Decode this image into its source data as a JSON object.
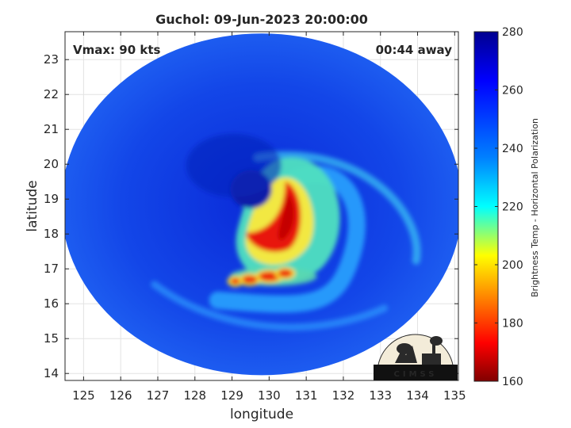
{
  "chart_data": {
    "type": "heatmap",
    "title": "Guchol: 09-Jun-2023 20:00:00",
    "annotations": {
      "vmax": "Vmax: 90 kts",
      "time_offset": "00:44 away"
    },
    "xlabel": "longitude",
    "ylabel": "latitude",
    "xlim": [
      124.5,
      135.1
    ],
    "ylim": [
      13.8,
      23.8
    ],
    "x_ticks": [
      125,
      126,
      127,
      128,
      129,
      130,
      131,
      132,
      133,
      134,
      135
    ],
    "y_ticks": [
      14,
      15,
      16,
      17,
      18,
      19,
      20,
      21,
      22,
      23
    ],
    "grid": true,
    "colorbar": {
      "label": "Brightness Temp - Horizontal Polarization",
      "range": [
        160,
        280
      ],
      "ticks": [
        160,
        180,
        200,
        220,
        240,
        260,
        280
      ],
      "colormap": "jet"
    },
    "swath": {
      "center_lon": 129.8,
      "center_lat": 18.85,
      "radius_lon": 5.4,
      "radius_lat": 4.9
    },
    "storm_center": {
      "lon": 129.9,
      "lat": 18.6
    },
    "features": [
      {
        "name": "eye",
        "lon": 129.7,
        "lat": 18.9,
        "value": 276
      },
      {
        "name": "eyewall",
        "lon": 130.3,
        "lat": 18.1,
        "value": 182
      },
      {
        "name": "rainband-south",
        "lon": 130.2,
        "lat": 16.4,
        "value": 200
      },
      {
        "name": "rainband-east",
        "lon": 131.4,
        "lat": 19.0,
        "value": 232
      }
    ],
    "logo_text": "CIMSS"
  }
}
